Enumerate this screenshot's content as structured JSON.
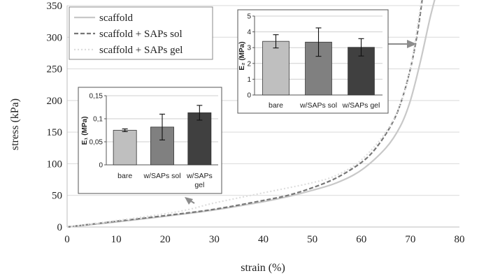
{
  "chart_data": [
    {
      "type": "line",
      "xlabel": "strain (%)",
      "ylabel": "stress (kPa)",
      "xlim": [
        0,
        80
      ],
      "ylim": [
        0,
        350
      ],
      "xticks": [
        "0",
        "10",
        "20",
        "30",
        "40",
        "50",
        "60",
        "70",
        "80"
      ],
      "yticks": [
        "0",
        "50",
        "100",
        "150",
        "200",
        "250",
        "300",
        "350"
      ],
      "grid": "horizontal",
      "legend": "top-left",
      "series": [
        {
          "name": "scaffold",
          "color": "#c8c8c8",
          "dash": "solid",
          "points": [
            [
              0,
              0
            ],
            [
              10,
              8
            ],
            [
              20,
              17
            ],
            [
              30,
              27
            ],
            [
              40,
              40
            ],
            [
              45,
              48
            ],
            [
              50,
              58
            ],
            [
              55,
              70
            ],
            [
              60,
              90
            ],
            [
              65,
              125
            ],
            [
              68,
              160
            ],
            [
              70,
              200
            ],
            [
              72,
              260
            ],
            [
              74,
              330
            ],
            [
              75.5,
              375
            ]
          ]
        },
        {
          "name": "scaffold + SAPs sol",
          "color": "#777777",
          "dash": "dashed",
          "points": [
            [
              0,
              0
            ],
            [
              10,
              9
            ],
            [
              20,
              18
            ],
            [
              30,
              28
            ],
            [
              40,
              42
            ],
            [
              45,
              50
            ],
            [
              50,
              62
            ],
            [
              55,
              78
            ],
            [
              60,
              102
            ],
            [
              63,
              125
            ],
            [
              66,
              160
            ],
            [
              68,
              195
            ],
            [
              70,
              250
            ],
            [
              71.5,
              310
            ],
            [
              72.5,
              365
            ]
          ]
        },
        {
          "name": "scaffold + SAPs gel",
          "color": "#dddddd",
          "dash": "dotted",
          "points": [
            [
              0,
              0
            ],
            [
              10,
              10
            ],
            [
              20,
              21
            ],
            [
              25,
              28
            ],
            [
              30,
              38
            ],
            [
              40,
              54
            ],
            [
              50,
              70
            ],
            [
              55,
              82
            ],
            [
              60,
              106
            ],
            [
              65,
              150
            ],
            [
              68,
              195
            ],
            [
              70,
              250
            ],
            [
              71.5,
              320
            ],
            [
              72.3,
              362
            ]
          ]
        }
      ]
    },
    {
      "type": "bar",
      "ylabel": "E₁ (MPa)",
      "ylim": [
        0,
        0.15
      ],
      "yticks": [
        "0",
        "0,05",
        "0,1",
        "0,15"
      ],
      "categories": [
        "bare",
        "w/SAPs sol",
        "w/SAPs gel"
      ],
      "category_lines": [
        [
          "bare"
        ],
        [
          "w/SAPs sol"
        ],
        [
          "w/SAPs",
          "gel"
        ]
      ],
      "values": [
        0.075,
        0.082,
        0.113
      ],
      "errors": [
        0.003,
        0.028,
        0.016
      ],
      "colors": [
        "#bfbfbf",
        "#808080",
        "#404040"
      ]
    },
    {
      "type": "bar",
      "ylabel": "E₂ (MPa)",
      "ylim": [
        0,
        5
      ],
      "yticks": [
        "0",
        "1",
        "2",
        "3",
        "4",
        "5"
      ],
      "categories": [
        "bare",
        "w/SAPs sol",
        "w/SAPs gel"
      ],
      "category_lines": [
        [
          "bare"
        ],
        [
          "w/SAPs sol"
        ],
        [
          "w/SAPs gel"
        ]
      ],
      "values": [
        3.4,
        3.35,
        3.02
      ],
      "errors": [
        0.42,
        0.9,
        0.55
      ],
      "colors": [
        "#bfbfbf",
        "#808080",
        "#404040"
      ]
    }
  ]
}
